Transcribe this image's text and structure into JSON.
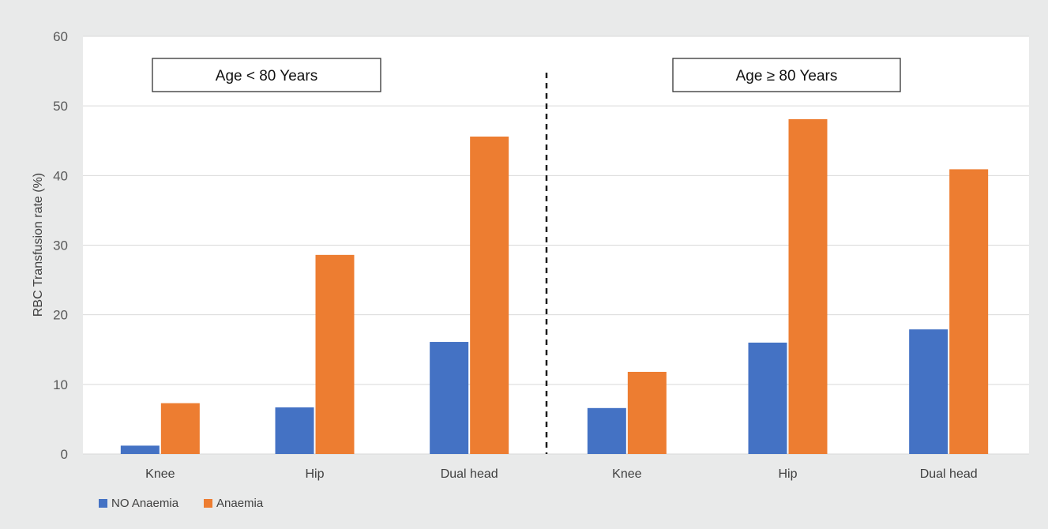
{
  "colors": {
    "no_anaemia": "#4472c4",
    "anaemia": "#ed7d31",
    "plot_bg": "#ffffff",
    "page_bg": "#e9eaea",
    "grid": "#d9d9d9"
  },
  "chart_data": {
    "type": "bar",
    "ylabel": "RBC Transfusion rate (%)",
    "xlabel": "",
    "ylim": [
      0,
      60
    ],
    "yticks": [
      0,
      10,
      20,
      30,
      40,
      50,
      60
    ],
    "grid": true,
    "legend_position": "bottom-left",
    "groups": [
      {
        "title": "Age < 80 Years",
        "categories": [
          "Knee",
          "Hip",
          "Dual head"
        ],
        "series": [
          {
            "name": "NO Anaemia",
            "values": [
              1.2,
              6.7,
              16.1
            ]
          },
          {
            "name": "Anaemia",
            "values": [
              7.3,
              28.6,
              45.6
            ]
          }
        ]
      },
      {
        "title": "Age ≥ 80 Years",
        "categories": [
          "Knee",
          "Hip",
          "Dual head"
        ],
        "series": [
          {
            "name": "NO Anaemia",
            "values": [
              6.6,
              16.0,
              17.9
            ]
          },
          {
            "name": "Anaemia",
            "values": [
              11.8,
              48.1,
              40.9
            ]
          }
        ]
      }
    ],
    "legend": [
      "NO Anaemia",
      "Anaemia"
    ]
  }
}
